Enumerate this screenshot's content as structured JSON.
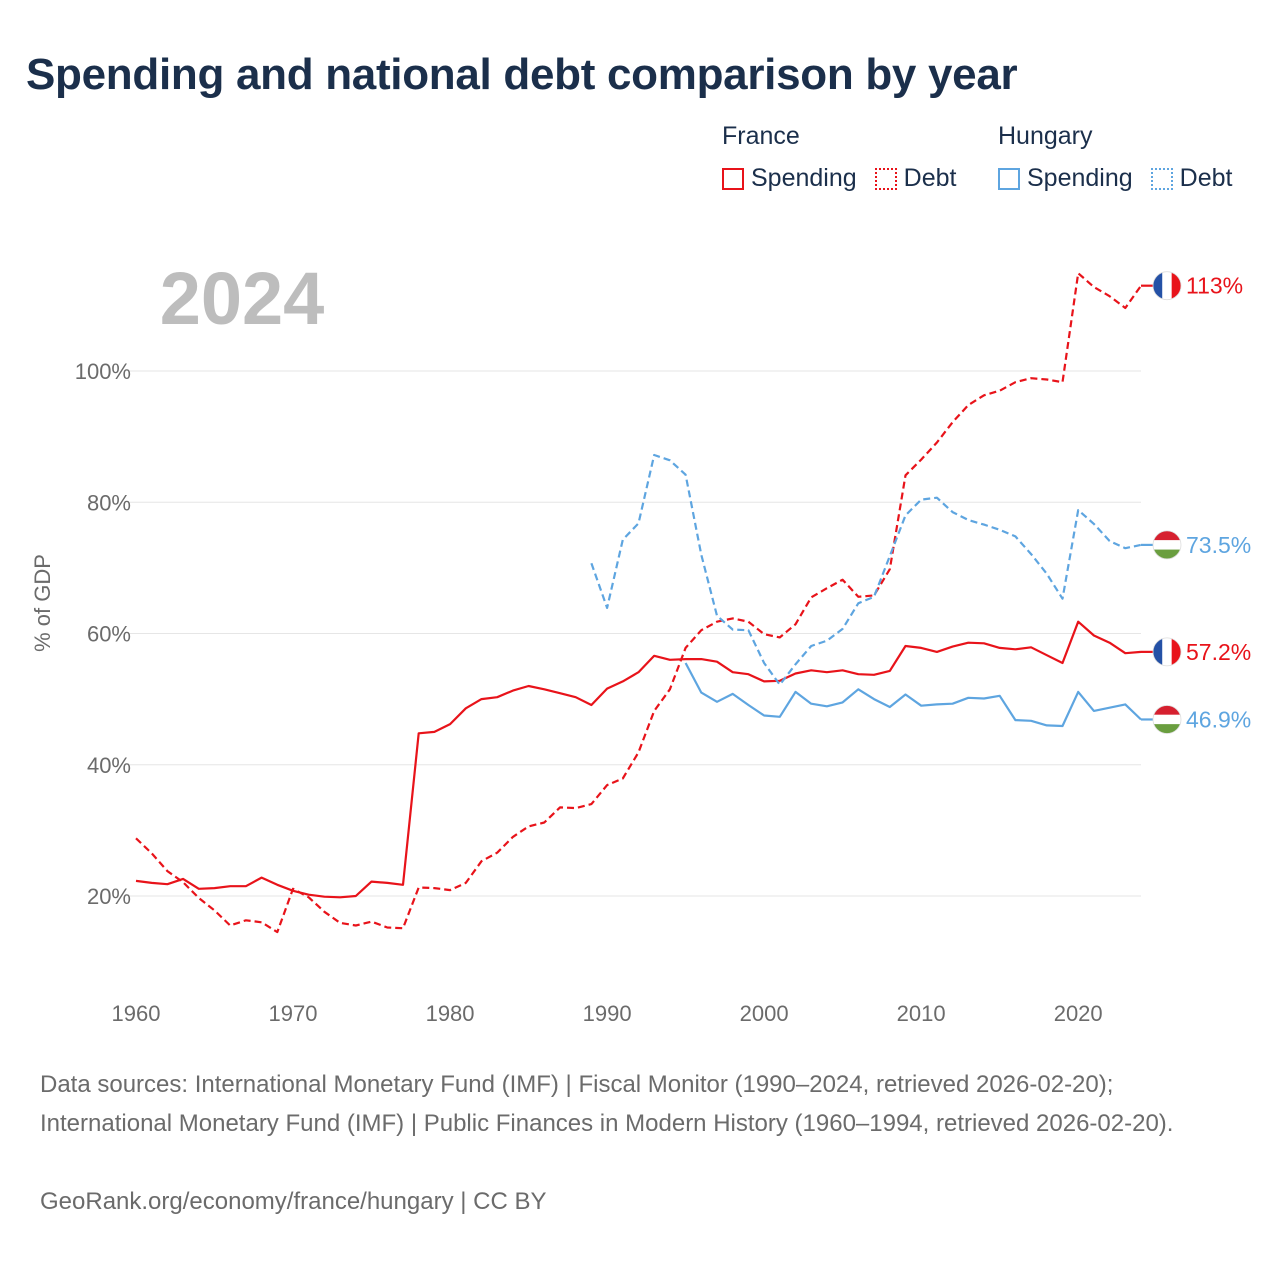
{
  "title": "Spending and national debt comparison by year",
  "legend": {
    "groups": [
      {
        "name": "France",
        "items": [
          "Spending",
          "Debt"
        ]
      },
      {
        "name": "Hungary",
        "items": [
          "Spending",
          "Debt"
        ]
      }
    ]
  },
  "colors": {
    "france": "#e8131a",
    "hungary": "#5ea5e0",
    "year_label": "#bdbdbd",
    "grid": "#e6e6e6",
    "axis_text": "#6b6b6b"
  },
  "footer": {
    "sources": "Data sources: International Monetary Fund (IMF) | Fiscal Monitor (1990–2024, retrieved 2026-02-20); International Monetary Fund (IMF) | Public Finances in Modern History (1960–1994, retrieved 2026-02-20).",
    "credit": "GeoRank.org/economy/france/hungary | CC BY"
  },
  "chart_data": {
    "type": "line",
    "year_label": "2024",
    "ylabel": "% of GDP",
    "xlim": [
      1960,
      2024
    ],
    "ylim": [
      5,
      120
    ],
    "x_ticks": [
      1960,
      1970,
      1980,
      1990,
      2000,
      2010,
      2020
    ],
    "y_ticks": [
      {
        "value": 20,
        "label": "20%"
      },
      {
        "value": 40,
        "label": "40%"
      },
      {
        "value": 60,
        "label": "60%"
      },
      {
        "value": 80,
        "label": "80%"
      },
      {
        "value": 100,
        "label": "100%"
      }
    ],
    "series": [
      {
        "name": "France Spending",
        "country": "France",
        "dash": false,
        "color": "#e8131a",
        "end_label": "57.2%",
        "x": [
          1960,
          1961,
          1962,
          1963,
          1964,
          1965,
          1966,
          1967,
          1968,
          1969,
          1970,
          1971,
          1972,
          1973,
          1974,
          1975,
          1976,
          1977,
          1978,
          1979,
          1980,
          1981,
          1982,
          1983,
          1984,
          1985,
          1986,
          1987,
          1988,
          1989,
          1990,
          1991,
          1992,
          1993,
          1994,
          1995,
          1996,
          1997,
          1998,
          1999,
          2000,
          2001,
          2002,
          2003,
          2004,
          2005,
          2006,
          2007,
          2008,
          2009,
          2010,
          2011,
          2012,
          2013,
          2014,
          2015,
          2016,
          2017,
          2018,
          2019,
          2020,
          2021,
          2022,
          2023,
          2024
        ],
        "y": [
          22.3,
          22.0,
          21.8,
          22.6,
          21.1,
          21.2,
          21.5,
          21.5,
          22.8,
          21.7,
          20.8,
          20.2,
          19.9,
          19.8,
          20.0,
          22.2,
          22.0,
          21.7,
          44.8,
          45.0,
          46.2,
          48.6,
          50.0,
          50.3,
          51.3,
          52.0,
          51.5,
          50.9,
          50.3,
          49.1,
          51.6,
          52.7,
          54.1,
          56.6,
          56.0,
          56.1,
          56.1,
          55.7,
          54.1,
          53.8,
          52.7,
          52.8,
          53.9,
          54.4,
          54.1,
          54.4,
          53.8,
          53.7,
          54.3,
          58.1,
          57.8,
          57.2,
          58.0,
          58.6,
          58.5,
          57.8,
          57.6,
          57.9,
          56.7,
          55.5,
          61.8,
          59.7,
          58.6,
          57.0,
          57.2
        ]
      },
      {
        "name": "France Debt",
        "country": "France",
        "dash": true,
        "color": "#e8131a",
        "end_label": "113%",
        "x": [
          1960,
          1961,
          1962,
          1963,
          1964,
          1965,
          1966,
          1967,
          1968,
          1969,
          1970,
          1971,
          1972,
          1973,
          1974,
          1975,
          1976,
          1977,
          1978,
          1979,
          1980,
          1981,
          1982,
          1983,
          1984,
          1985,
          1986,
          1987,
          1988,
          1989,
          1990,
          1991,
          1992,
          1993,
          1994,
          1995,
          1996,
          1997,
          1998,
          1999,
          2000,
          2001,
          2002,
          2003,
          2004,
          2005,
          2006,
          2007,
          2008,
          2009,
          2010,
          2011,
          2012,
          2013,
          2014,
          2015,
          2016,
          2017,
          2018,
          2019,
          2020,
          2021,
          2022,
          2023,
          2024
        ],
        "y": [
          28.8,
          26.5,
          23.8,
          22.1,
          19.7,
          17.8,
          15.5,
          16.3,
          16.0,
          14.5,
          21.1,
          19.8,
          17.6,
          15.9,
          15.5,
          16.1,
          15.2,
          15.1,
          21.3,
          21.2,
          20.9,
          22.0,
          25.3,
          26.6,
          29.0,
          30.6,
          31.2,
          33.5,
          33.4,
          34.0,
          36.9,
          37.9,
          41.9,
          48.2,
          51.5,
          57.8,
          60.5,
          61.8,
          62.3,
          61.8,
          59.9,
          59.4,
          61.4,
          65.5,
          66.9,
          68.2,
          65.6,
          65.8,
          69.8,
          84.1,
          86.5,
          89.1,
          92.2,
          94.8,
          96.3,
          97.0,
          98.3,
          98.9,
          98.7,
          98.3,
          114.9,
          112.8,
          111.4,
          109.6,
          113.0
        ]
      },
      {
        "name": "Hungary Spending",
        "country": "Hungary",
        "dash": false,
        "color": "#5ea5e0",
        "end_label": "46.9%",
        "x": [
          1995,
          1996,
          1997,
          1998,
          1999,
          2000,
          2001,
          2002,
          2003,
          2004,
          2005,
          2006,
          2007,
          2008,
          2009,
          2010,
          2011,
          2012,
          2013,
          2014,
          2015,
          2016,
          2017,
          2018,
          2019,
          2020,
          2021,
          2022,
          2023,
          2024
        ],
        "y": [
          55.5,
          51.0,
          49.6,
          50.8,
          49.1,
          47.5,
          47.3,
          51.1,
          49.3,
          48.9,
          49.5,
          51.5,
          50.0,
          48.8,
          50.7,
          49.0,
          49.2,
          49.3,
          50.2,
          50.1,
          50.5,
          46.8,
          46.7,
          46.0,
          45.9,
          51.1,
          48.2,
          48.7,
          49.2,
          46.9
        ]
      },
      {
        "name": "Hungary Debt",
        "country": "Hungary",
        "dash": true,
        "color": "#5ea5e0",
        "end_label": "73.5%",
        "x": [
          1989,
          1990,
          1991,
          1992,
          1993,
          1994,
          1995,
          1996,
          1997,
          1998,
          1999,
          2000,
          2001,
          2002,
          2003,
          2004,
          2005,
          2006,
          2007,
          2008,
          2009,
          2010,
          2011,
          2012,
          2013,
          2014,
          2015,
          2016,
          2017,
          2018,
          2019,
          2020,
          2021,
          2022,
          2023,
          2024
        ],
        "y": [
          70.7,
          63.9,
          74.3,
          76.8,
          87.2,
          86.4,
          84.2,
          72.0,
          62.7,
          60.6,
          60.5,
          55.5,
          52.2,
          55.3,
          58.1,
          58.9,
          60.7,
          64.6,
          65.6,
          71.8,
          78.0,
          80.4,
          80.7,
          78.5,
          77.3,
          76.6,
          75.8,
          74.8,
          72.1,
          69.1,
          65.3,
          78.8,
          76.7,
          74.1,
          73.0,
          73.5
        ]
      }
    ]
  }
}
